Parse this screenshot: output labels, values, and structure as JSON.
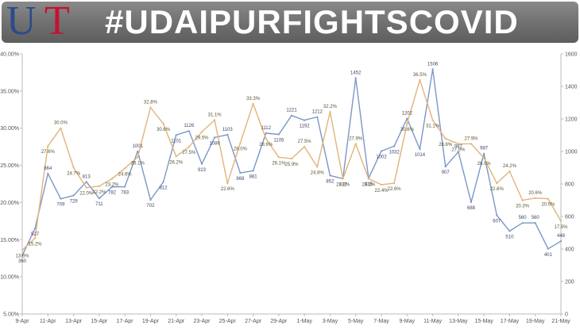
{
  "header": {
    "logo_u": "U",
    "logo_t": "T",
    "title": "#UDAIPURFIGHTSCOVID"
  },
  "chart_data": {
    "type": "line",
    "title": "",
    "xlabel": "",
    "ylabel": "",
    "y_left": {
      "range": [
        0.05,
        0.4
      ],
      "ticks": [
        "5.00%",
        "10.00%",
        "15.00%",
        "20.00%",
        "25.00%",
        "30.00%",
        "35.00%",
        "40.00%"
      ]
    },
    "y_right": {
      "range": [
        0,
        1600
      ],
      "ticks": [
        "0",
        "200",
        "400",
        "600",
        "800",
        "1000",
        "1200",
        "1400",
        "1600"
      ]
    },
    "x": [
      "9-Apr",
      "10-Apr",
      "11-Apr",
      "12-Apr",
      "13-Apr",
      "14-Apr",
      "15-Apr",
      "16-Apr",
      "17-Apr",
      "18-Apr",
      "19-Apr",
      "20-Apr",
      "21-Apr",
      "22-Apr",
      "23-Apr",
      "24-Apr",
      "25-Apr",
      "26-Apr",
      "27-Apr",
      "28-Apr",
      "29-Apr",
      "30-Apr",
      "1-May",
      "2-May",
      "3-May",
      "4-May",
      "5-May",
      "6-May",
      "7-May",
      "8-May",
      "9-May",
      "10-May",
      "11-May",
      "12-May",
      "13-May",
      "14-May",
      "15-May",
      "16-May",
      "17-May",
      "18-May",
      "19-May",
      "20-May",
      "21-May"
    ],
    "x_tick_labels": [
      "9-Apr",
      "11-Apr",
      "13-Apr",
      "15-Apr",
      "17-Apr",
      "19-Apr",
      "21-Apr",
      "23-Apr",
      "25-Apr",
      "27-Apr",
      "29-Apr",
      "1-May",
      "3-May",
      "5-May",
      "7-May",
      "9-May",
      "11-May",
      "13-May",
      "15-May",
      "17-May",
      "19-May",
      "21-May"
    ],
    "grid": false,
    "legend": "none",
    "series": [
      {
        "axis": "right",
        "color": "#7b97c9",
        "values": [
          360,
          527,
          864,
          709,
          729,
          813,
          711,
          782,
          783,
          1001,
          702,
          812,
          1101,
          1126,
          923,
          1086,
          1103,
          868,
          881,
          1112,
          1105,
          1221,
          1192,
          1212,
          852,
          832,
          1452,
          835,
          1002,
          1032,
          1202,
          1014,
          1506,
          907,
          997,
          688,
          987,
          607,
          510,
          560,
          560,
          401,
          448
        ],
        "labels": [
          "360",
          "527",
          "864",
          "709",
          "729",
          "813",
          "711",
          "782",
          "783",
          "1001",
          "702",
          "812",
          "1101",
          "1126",
          "923",
          "1086",
          "1103",
          "868",
          "881",
          "1112",
          "1105",
          "1221",
          "1192",
          "1212",
          "852",
          "832",
          "1452",
          "835",
          "1002",
          "1032",
          "1202",
          "1014",
          "1506",
          "907",
          "997",
          "688",
          "987",
          "607",
          "510",
          "560",
          "560",
          "401",
          "448"
        ]
      },
      {
        "axis": "left",
        "color": "#e0b47a",
        "values": [
          0.136,
          0.152,
          0.276,
          0.3,
          0.247,
          0.22,
          0.222,
          0.232,
          0.246,
          0.261,
          0.328,
          0.306,
          0.262,
          0.275,
          0.295,
          0.311,
          0.226,
          0.28,
          0.333,
          0.286,
          0.261,
          0.259,
          0.275,
          0.248,
          0.322,
          0.232,
          0.279,
          0.232,
          0.224,
          0.226,
          0.306,
          0.365,
          0.311,
          0.286,
          0.279,
          0.279,
          0.26,
          0.226,
          0.242,
          0.203,
          0.206,
          0.205,
          0.175
        ],
        "labels": [
          "13.6%",
          "15.2%",
          "27.6%",
          "30.0%",
          "24.7%",
          "22.0%",
          "22.2%",
          "23.2%",
          "24.6%",
          "26.1%",
          "32.8%",
          "30.6%",
          "26.2%",
          "27.5%",
          "29.5%",
          "31.1%",
          "22.6%",
          "28.0%",
          "33.3%",
          "28.6%",
          "26.1%",
          "25.9%",
          "27.5%",
          "24.8%",
          "32.2%",
          "23.2%",
          "27.9%",
          "23.2%",
          "22.4%",
          "22.6%",
          "30.6%",
          "36.5%",
          "31.1%",
          "28.6%",
          "27.9%",
          "27.9%",
          "26.0%",
          "22.6%",
          "24.2%",
          "20.3%",
          "20.6%",
          "20.5%",
          "17.5%"
        ]
      }
    ]
  }
}
